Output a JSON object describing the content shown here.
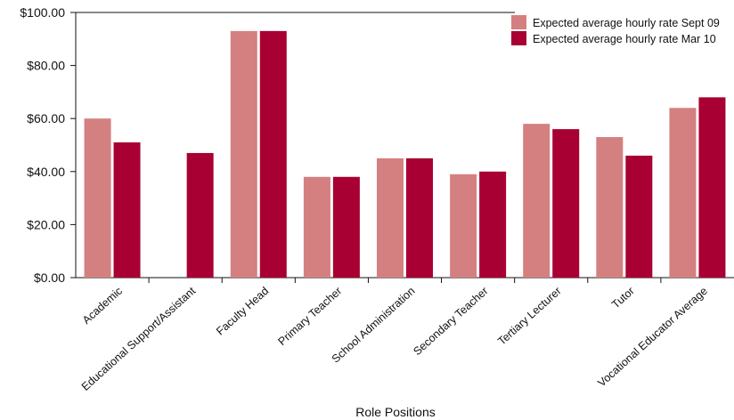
{
  "chart_data": {
    "type": "bar",
    "title": "",
    "xlabel": "Role Positions",
    "ylabel": "",
    "ylim": [
      0,
      100
    ],
    "yticks": [
      "$0.00",
      "$20.00",
      "$40.00",
      "$60.00",
      "$80.00",
      "$100.00"
    ],
    "ytick_values": [
      0,
      20,
      40,
      60,
      80,
      100
    ],
    "grid": false,
    "legend_position": "top-right",
    "categories": [
      "Academic",
      "Educational Support/Assistant",
      "Faculty Head",
      "Primary Teacher",
      "School Administration",
      "Secondary Teacher",
      "Tertiary Lecturer",
      "Tutor",
      "Vocational Educator Average"
    ],
    "series": [
      {
        "name": "Expected average hourly rate Sept 09",
        "color": "#d48080",
        "values": [
          60,
          null,
          93,
          38,
          45,
          39,
          58,
          53,
          64
        ]
      },
      {
        "name": "Expected average hourly rate Mar 10",
        "color": "#a80032",
        "values": [
          51,
          47,
          93,
          38,
          45,
          40,
          56,
          46,
          68
        ]
      }
    ]
  }
}
